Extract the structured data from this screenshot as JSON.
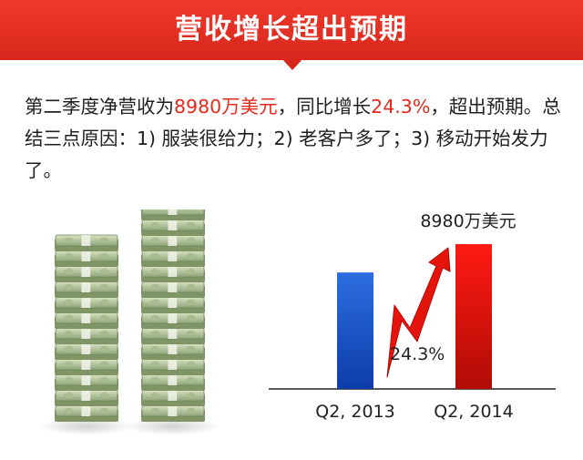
{
  "header": {
    "title": "营收增长超出预期"
  },
  "summary": {
    "p1": "第二季度净营收为",
    "revenue": "8980万美元",
    "p2": "，同比增长",
    "growth": "24.3%",
    "p3": "，超出预期。总结三点原因：1) 服装很给力；2) 老客户多了；3) 移动开始发力了。"
  },
  "colors": {
    "banner": "#e0291f",
    "highlight": "#e42a1f",
    "bar_2013": "#1a53c4",
    "bar_2014": "#e3120b",
    "arrow": "#e4140c"
  },
  "chart_data": {
    "type": "bar",
    "categories": [
      "Q2, 2013",
      "Q2, 2014"
    ],
    "values": [
      7225,
      8980
    ],
    "unit": "万美元",
    "ylim": [
      0,
      10000
    ],
    "grid": false,
    "data_labels": [
      "",
      "8980万美元"
    ],
    "annotation": "24.3%"
  }
}
